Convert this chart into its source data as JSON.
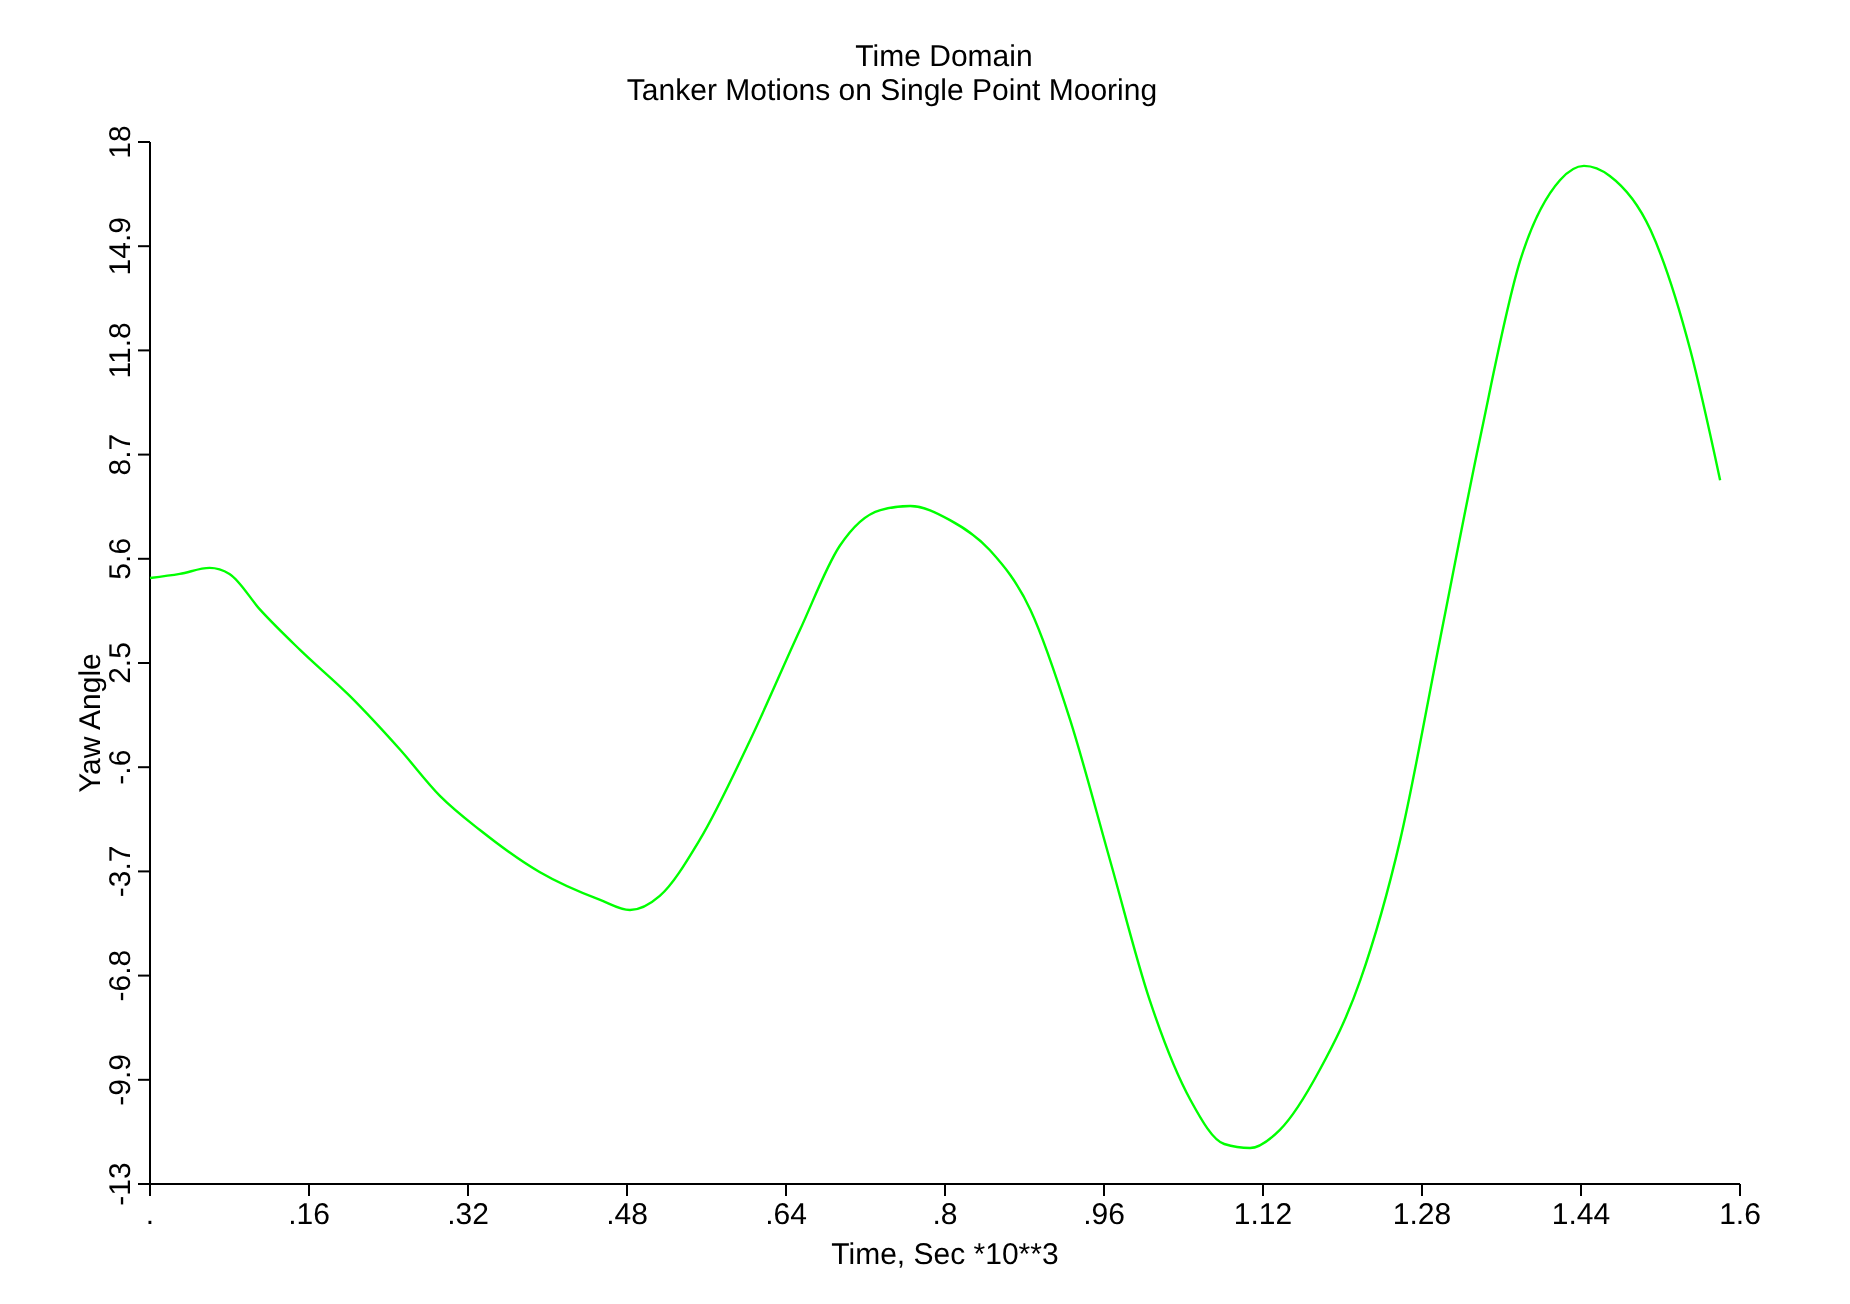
{
  "chart_data": {
    "type": "line",
    "title": "Time Domain",
    "subtitle": "Tanker Motions on Single Point Mooring",
    "xlabel": "Time, Sec *10**3",
    "ylabel": "Yaw Angle",
    "x": [
      0,
      0.03,
      0.06,
      0.08,
      0.111,
      0.151,
      0.201,
      0.252,
      0.292,
      0.332,
      0.392,
      0.453,
      0.483,
      0.513,
      0.553,
      0.604,
      0.654,
      0.694,
      0.735,
      0.765,
      0.805,
      0.845,
      0.886,
      0.926,
      0.966,
      1.006,
      1.047,
      1.081,
      1.107,
      1.137,
      1.177,
      1.218,
      1.258,
      1.298,
      1.338,
      1.379,
      1.419,
      1.443,
      1.469,
      1.51,
      1.55,
      1.58
    ],
    "series": [
      {
        "color": "#00ff00",
        "values": [
          5.03,
          5.15,
          5.33,
          5.15,
          4.08,
          2.89,
          1.52,
          -0.09,
          -1.46,
          -2.47,
          -3.72,
          -4.55,
          -4.85,
          -4.43,
          -2.77,
          0.21,
          3.48,
          5.98,
          7.05,
          7.17,
          6.75,
          5.86,
          4.08,
          0.8,
          -3.36,
          -7.53,
          -10.5,
          -11.81,
          -11.93,
          -11.39,
          -9.61,
          -6.93,
          -2.77,
          3.18,
          9.13,
          14.49,
          16.87,
          17.29,
          16.99,
          15.38,
          11.81,
          7.94
        ]
      }
    ],
    "xlim": [
      0,
      1.6
    ],
    "ylim": [
      -13,
      18
    ],
    "xticks": [
      {
        "value": 0,
        "label": "."
      },
      {
        "value": 0.16,
        "label": ".16"
      },
      {
        "value": 0.32,
        "label": ".32"
      },
      {
        "value": 0.48,
        "label": ".48"
      },
      {
        "value": 0.64,
        "label": ".64"
      },
      {
        "value": 0.8,
        "label": ".8"
      },
      {
        "value": 0.96,
        "label": ".96"
      },
      1.12,
      1.28,
      1.44,
      1.6
    ],
    "yticks": [
      -13,
      -9.9,
      -6.8,
      -3.7,
      {
        "value": -0.6,
        "label": "-.6"
      },
      2.5,
      5.6,
      8.7,
      11.8,
      14.9,
      18
    ],
    "grid": false,
    "marker": "none",
    "line_style": "solid"
  }
}
